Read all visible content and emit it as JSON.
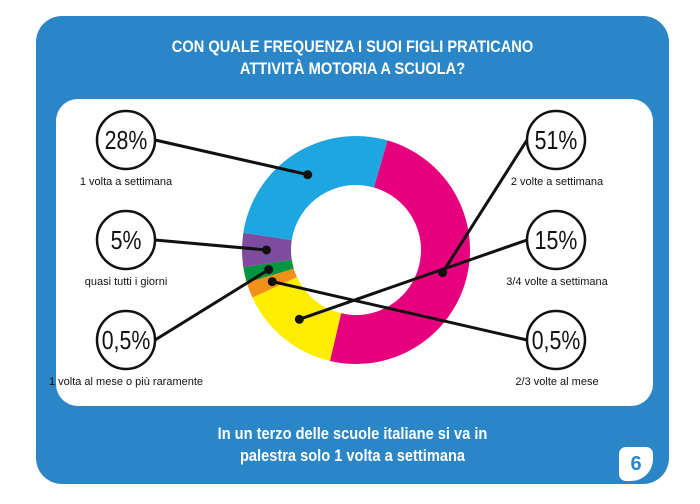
{
  "title_line1": "CON QUALE FREQUENZA I SUOI FIGLI PRATICANO",
  "title_line2": "ATTIVITÀ MOTORIA A SCUOLA?",
  "footer_line1": "In un terzo delle scuole italiane si va in",
  "footer_line2": "palestra solo 1 volta a settimana",
  "page_number": "6",
  "colors": {
    "card": "#2a86c7",
    "magenta": "#e6007e",
    "yellow": "#ffed00",
    "orange": "#f39019",
    "green": "#009640",
    "purple": "#7d4c9e",
    "cyan": "#1ea6e1"
  },
  "chart_data": {
    "type": "pie",
    "donut": true,
    "title": "CON QUALE FREQUENZA I SUOI FIGLI PRATICANO ATTIVITÀ MOTORIA A SCUOLA?",
    "slices": [
      {
        "label": "2 volte a settimana",
        "display": "51%",
        "value": 51,
        "color": "#e6007e"
      },
      {
        "label": "3/4 volte a settimana",
        "display": "15%",
        "value": 15,
        "color": "#ffed00"
      },
      {
        "label": "2/3 volte al mese",
        "display": "0,5%",
        "value": 0.5,
        "color": "#f39019"
      },
      {
        "label": "1 volta al mese o più raramente",
        "display": "0,5%",
        "value": 0.5,
        "color": "#009640"
      },
      {
        "label": "quasi tutti i giorni",
        "display": "5%",
        "value": 5,
        "color": "#7d4c9e"
      },
      {
        "label": "1 volta a settimana",
        "display": "28%",
        "value": 28,
        "color": "#1ea6e1"
      }
    ]
  }
}
